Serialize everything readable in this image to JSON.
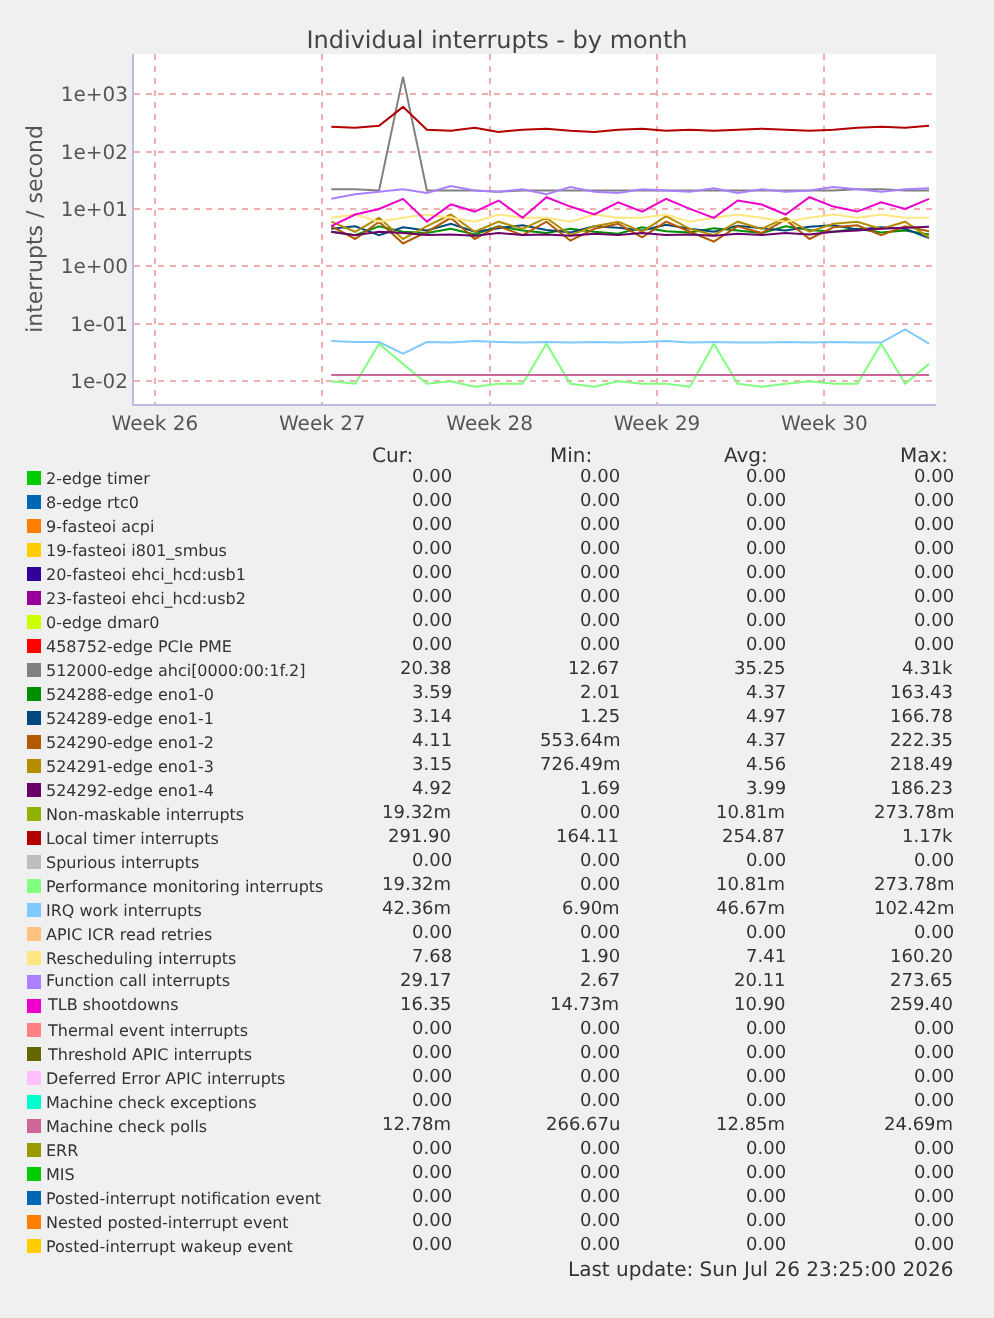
{
  "chart_data": {
    "type": "line",
    "title": "Individual interrupts - by month",
    "ylabel": "interrupts / second",
    "log": "y",
    "grid": true,
    "legend": "bottom",
    "marker": "none",
    "line_style": "solid",
    "x": [
      "2026-07-01T20:00",
      "2026-07-02T20:00",
      "2026-07-03T20:00",
      "2026-07-04T20:00",
      "2026-07-05T20:00",
      "2026-07-06T20:00",
      "2026-07-07T20:00",
      "2026-07-08T20:00",
      "2026-07-09T20:00",
      "2026-07-10T20:00",
      "2026-07-11T20:00",
      "2026-07-12T20:00",
      "2026-07-13T20:00",
      "2026-07-14T20:00",
      "2026-07-15T20:00",
      "2026-07-16T20:00",
      "2026-07-17T20:00",
      "2026-07-18T20:00",
      "2026-07-19T20:00",
      "2026-07-20T20:00",
      "2026-07-21T20:00",
      "2026-07-22T20:00",
      "2026-07-23T20:00",
      "2026-07-24T20:00",
      "2026-07-25T20:00",
      "2026-07-26T20:00"
    ],
    "xlim": [
      "2026-06-23T14:00",
      "2026-07-27T03:00"
    ],
    "xticks": [
      {
        "value": "2026-06-24T11:00",
        "label": "Week 26"
      },
      {
        "value": "2026-07-01T11:00",
        "label": "Week 27"
      },
      {
        "value": "2026-07-08T11:00",
        "label": "Week 28"
      },
      {
        "value": "2026-07-15T11:00",
        "label": "Week 29"
      },
      {
        "value": "2026-07-22T11:00",
        "label": "Week 30"
      }
    ],
    "ylim": [
      0.004,
      5000
    ],
    "yticks": [
      {
        "value": 0.01,
        "label": "1e-02"
      },
      {
        "value": 0.1,
        "label": "1e-01"
      },
      {
        "value": 1,
        "label": "1e+00"
      },
      {
        "value": 10,
        "label": "1e+01"
      },
      {
        "value": 100,
        "label": "1e+02"
      },
      {
        "value": 1000,
        "label": "1e+03"
      }
    ],
    "series": [
      {
        "name": "2-edge timer",
        "color": "#00cc00",
        "values": [
          null,
          null,
          null,
          null,
          null,
          null,
          null,
          null,
          null,
          null,
          null,
          null,
          null,
          null,
          null,
          null,
          null,
          null,
          null,
          null,
          null,
          null,
          null,
          null,
          null,
          null
        ]
      },
      {
        "name": "8-edge rtc0",
        "color": "#0066b3",
        "values": [
          null,
          null,
          null,
          null,
          null,
          null,
          null,
          null,
          null,
          null,
          null,
          null,
          null,
          null,
          null,
          null,
          null,
          null,
          null,
          null,
          null,
          null,
          null,
          null,
          null,
          null
        ]
      },
      {
        "name": "9-fasteoi acpi",
        "color": "#ff8000",
        "values": [
          null,
          null,
          null,
          null,
          null,
          null,
          null,
          null,
          null,
          null,
          null,
          null,
          null,
          null,
          null,
          null,
          null,
          null,
          null,
          null,
          null,
          null,
          null,
          null,
          null,
          null
        ]
      },
      {
        "name": "19-fasteoi i801_smbus",
        "color": "#ffcc00",
        "values": [
          null,
          null,
          null,
          null,
          null,
          null,
          null,
          null,
          null,
          null,
          null,
          null,
          null,
          null,
          null,
          null,
          null,
          null,
          null,
          null,
          null,
          null,
          null,
          null,
          null,
          null
        ]
      },
      {
        "name": "20-fasteoi ehci_hcd:usb1",
        "color": "#330099",
        "values": [
          null,
          null,
          null,
          null,
          null,
          null,
          null,
          null,
          null,
          null,
          null,
          null,
          null,
          null,
          null,
          null,
          null,
          null,
          null,
          null,
          null,
          null,
          null,
          null,
          null,
          null
        ]
      },
      {
        "name": "23-fasteoi ehci_hcd:usb2",
        "color": "#990099",
        "values": [
          null,
          null,
          null,
          null,
          null,
          null,
          null,
          null,
          null,
          null,
          null,
          null,
          null,
          null,
          null,
          null,
          null,
          null,
          null,
          null,
          null,
          null,
          null,
          null,
          null,
          null
        ]
      },
      {
        "name": "0-edge dmar0",
        "color": "#ccff00",
        "values": [
          null,
          null,
          null,
          null,
          null,
          null,
          null,
          null,
          null,
          null,
          null,
          null,
          null,
          null,
          null,
          null,
          null,
          null,
          null,
          null,
          null,
          null,
          null,
          null,
          null,
          null
        ]
      },
      {
        "name": "458752-edge PCIe PME",
        "color": "#ff0000",
        "values": [
          null,
          null,
          null,
          null,
          null,
          null,
          null,
          null,
          null,
          null,
          null,
          null,
          null,
          null,
          null,
          null,
          null,
          null,
          null,
          null,
          null,
          null,
          null,
          null,
          null,
          null
        ]
      },
      {
        "name": "512000-edge ahci[0000:00:1f.2]",
        "color": "#808080",
        "values": [
          22,
          22,
          21,
          2000,
          21,
          21,
          21,
          20,
          21,
          21,
          21,
          21,
          21,
          21,
          21,
          21,
          21,
          21,
          21,
          21,
          21,
          21,
          22,
          22,
          21,
          21
        ]
      },
      {
        "name": "524288-edge eno1-0",
        "color": "#008f00",
        "values": [
          4,
          3.5,
          5,
          4,
          3.8,
          4.5,
          3.6,
          5,
          4.2,
          3.8,
          4.5,
          4,
          3.7,
          4.8,
          4.1,
          3.9,
          4.6,
          4.2,
          3.8,
          5,
          4.3,
          4,
          4.5,
          3.9,
          4.2,
          3.6
        ]
      },
      {
        "name": "524289-edge eno1-1",
        "color": "#00487d",
        "values": [
          4.5,
          5,
          3.5,
          4.8,
          4.2,
          5.5,
          4,
          4.6,
          5.2,
          4.3,
          3.9,
          5,
          4.7,
          4.2,
          5.3,
          4.5,
          4,
          5.1,
          4.6,
          4.2,
          4.9,
          5.2,
          4.4,
          4.8,
          4.5,
          3.1
        ]
      },
      {
        "name": "524290-edge eno1-2",
        "color": "#b35a00",
        "values": [
          5,
          3,
          6,
          2.5,
          4,
          7,
          3,
          5,
          3.5,
          6,
          2.8,
          4.5,
          5.5,
          3.2,
          6,
          4,
          2.7,
          5,
          3.8,
          6.5,
          3,
          4.8,
          5.2,
          3.5,
          5,
          4.1
        ]
      },
      {
        "name": "524291-edge eno1-3",
        "color": "#b38f00",
        "values": [
          6,
          4,
          7,
          3,
          5,
          8,
          4,
          6,
          4.5,
          7,
          3.5,
          5,
          6,
          4,
          7.5,
          4.5,
          3.5,
          6,
          4.5,
          7,
          4,
          5.5,
          6,
          4.5,
          6,
          3.2
        ]
      },
      {
        "name": "524292-edge eno1-4",
        "color": "#6b006b",
        "values": [
          4,
          3.5,
          4,
          3.8,
          3.5,
          3.6,
          3.4,
          3.8,
          3.5,
          3.6,
          3.4,
          3.7,
          3.5,
          3.8,
          3.5,
          3.6,
          3.4,
          3.7,
          3.5,
          3.8,
          3.6,
          4,
          4.2,
          4.5,
          4.7,
          4.9
        ]
      },
      {
        "name": "Non-maskable interrupts",
        "color": "#8fb300",
        "values": [
          null,
          null,
          null,
          null,
          null,
          null,
          null,
          null,
          null,
          null,
          null,
          null,
          null,
          null,
          null,
          null,
          null,
          null,
          null,
          null,
          null,
          null,
          null,
          null,
          null,
          null
        ]
      },
      {
        "name": "Local timer interrupts",
        "color": "#b30000",
        "values": [
          270,
          260,
          280,
          600,
          240,
          230,
          260,
          220,
          240,
          250,
          230,
          220,
          240,
          250,
          230,
          240,
          230,
          240,
          250,
          240,
          230,
          240,
          260,
          270,
          260,
          280
        ]
      },
      {
        "name": "Spurious interrupts",
        "color": "#bebebe",
        "values": [
          null,
          null,
          null,
          null,
          null,
          null,
          null,
          null,
          null,
          null,
          null,
          null,
          null,
          null,
          null,
          null,
          null,
          null,
          null,
          null,
          null,
          null,
          null,
          null,
          null,
          null
        ]
      },
      {
        "name": "Performance monitoring interrupts",
        "color": "#80ff80",
        "values": [
          0.01,
          0.009,
          0.045,
          0.02,
          0.009,
          0.01,
          0.008,
          0.009,
          0.009,
          0.045,
          0.009,
          0.008,
          0.01,
          0.009,
          0.009,
          0.008,
          0.045,
          0.009,
          0.008,
          0.009,
          0.01,
          0.009,
          0.009,
          0.045,
          0.009,
          0.02
        ]
      },
      {
        "name": "IRQ work interrupts",
        "color": "#80c9ff",
        "values": [
          0.05,
          0.048,
          0.048,
          0.03,
          0.048,
          0.047,
          0.05,
          0.048,
          0.047,
          0.048,
          0.047,
          0.048,
          0.047,
          0.048,
          0.05,
          0.047,
          0.048,
          0.047,
          0.047,
          0.048,
          0.047,
          0.048,
          0.047,
          0.047,
          0.08,
          0.045
        ]
      },
      {
        "name": "APIC ICR read retries",
        "color": "#ffc080",
        "values": [
          null,
          null,
          null,
          null,
          null,
          null,
          null,
          null,
          null,
          null,
          null,
          null,
          null,
          null,
          null,
          null,
          null,
          null,
          null,
          null,
          null,
          null,
          null,
          null,
          null,
          null
        ]
      },
      {
        "name": "Rescheduling interrupts",
        "color": "#ffe680",
        "values": [
          7,
          8,
          6,
          7,
          8,
          7,
          6,
          8,
          7,
          7,
          6,
          8,
          7,
          7,
          8,
          6,
          7,
          8,
          7,
          6,
          7,
          8,
          7,
          8,
          7,
          7
        ]
      },
      {
        "name": "Function call interrupts",
        "color": "#aa80ff",
        "values": [
          15,
          18,
          20,
          22,
          19,
          25,
          21,
          20,
          22,
          18,
          24,
          20,
          19,
          22,
          21,
          20,
          23,
          19,
          22,
          20,
          21,
          24,
          22,
          20,
          22,
          23
        ]
      },
      {
        "name": "TLB shootdowns",
        "color": "#ee00cc",
        "values": [
          5,
          8,
          10,
          15,
          6,
          12,
          9,
          14,
          7,
          16,
          11,
          8,
          13,
          9,
          15,
          10,
          7,
          14,
          12,
          8,
          16,
          11,
          9,
          13,
          10,
          15
        ]
      },
      {
        "name": "Thermal event interrupts",
        "color": "#ff8080",
        "values": [
          null,
          null,
          null,
          null,
          null,
          null,
          null,
          null,
          null,
          null,
          null,
          null,
          null,
          null,
          null,
          null,
          null,
          null,
          null,
          null,
          null,
          null,
          null,
          null,
          null,
          null
        ]
      },
      {
        "name": "Threshold APIC interrupts",
        "color": "#666600",
        "values": [
          null,
          null,
          null,
          null,
          null,
          null,
          null,
          null,
          null,
          null,
          null,
          null,
          null,
          null,
          null,
          null,
          null,
          null,
          null,
          null,
          null,
          null,
          null,
          null,
          null,
          null
        ]
      },
      {
        "name": "Deferred Error APIC interrupts",
        "color": "#ffbfff",
        "values": [
          null,
          null,
          null,
          null,
          null,
          null,
          null,
          null,
          null,
          null,
          null,
          null,
          null,
          null,
          null,
          null,
          null,
          null,
          null,
          null,
          null,
          null,
          null,
          null,
          null,
          null
        ]
      },
      {
        "name": "Machine check exceptions",
        "color": "#00ffcc",
        "values": [
          null,
          null,
          null,
          null,
          null,
          null,
          null,
          null,
          null,
          null,
          null,
          null,
          null,
          null,
          null,
          null,
          null,
          null,
          null,
          null,
          null,
          null,
          null,
          null,
          null,
          null
        ]
      },
      {
        "name": "Machine check polls",
        "color": "#cc6699",
        "x": [
          "2026-07-01T20:00",
          "2026-07-26T20:00"
        ],
        "values": [
          0.0128,
          0.0128
        ]
      },
      {
        "name": "ERR",
        "color": "#999900",
        "values": [
          null,
          null,
          null,
          null,
          null,
          null,
          null,
          null,
          null,
          null,
          null,
          null,
          null,
          null,
          null,
          null,
          null,
          null,
          null,
          null,
          null,
          null,
          null,
          null,
          null,
          null
        ]
      },
      {
        "name": "MIS",
        "color": "#00cc00",
        "values": [
          null,
          null,
          null,
          null,
          null,
          null,
          null,
          null,
          null,
          null,
          null,
          null,
          null,
          null,
          null,
          null,
          null,
          null,
          null,
          null,
          null,
          null,
          null,
          null,
          null,
          null
        ]
      },
      {
        "name": "Posted-interrupt notification event",
        "color": "#0066b3",
        "values": [
          null,
          null,
          null,
          null,
          null,
          null,
          null,
          null,
          null,
          null,
          null,
          null,
          null,
          null,
          null,
          null,
          null,
          null,
          null,
          null,
          null,
          null,
          null,
          null,
          null,
          null
        ]
      },
      {
        "name": "Nested posted-interrupt event",
        "color": "#ff8000",
        "values": [
          null,
          null,
          null,
          null,
          null,
          null,
          null,
          null,
          null,
          null,
          null,
          null,
          null,
          null,
          null,
          null,
          null,
          null,
          null,
          null,
          null,
          null,
          null,
          null,
          null,
          null
        ]
      },
      {
        "name": "Posted-interrupt wakeup event",
        "color": "#ffcc00",
        "values": [
          null,
          null,
          null,
          null,
          null,
          null,
          null,
          null,
          null,
          null,
          null,
          null,
          null,
          null,
          null,
          null,
          null,
          null,
          null,
          null,
          null,
          null,
          null,
          null,
          null,
          null
        ]
      }
    ],
    "annotations": [
      "Cur:",
      "Min:",
      "Avg:",
      "Max:",
      "0.00",
      "0.00",
      "0.00",
      "0.00",
      "0.00",
      "0.00",
      "0.00",
      "0.00",
      "0.00",
      "0.00",
      "0.00",
      "0.00",
      "0.00",
      "0.00",
      "0.00",
      "0.00",
      "0.00",
      "0.00",
      "0.00",
      "0.00",
      "0.00",
      "0.00",
      "0.00",
      "0.00",
      "0.00",
      "0.00",
      "0.00",
      "0.00",
      "0.00",
      "0.00",
      "0.00",
      "0.00",
      "20.38",
      "12.67",
      "35.25",
      "4.31k",
      "3.59",
      "2.01",
      "4.37",
      "163.43",
      "3.14",
      "1.25",
      "4.97",
      "166.78",
      "4.11",
      "553.64m",
      "4.37",
      "222.35",
      "3.15",
      "726.49m",
      "4.56",
      "218.49",
      "4.92",
      "1.69",
      "3.99",
      "186.23",
      "19.32m",
      "0.00",
      "10.81m",
      "273.78m",
      "291.90",
      "164.11",
      "254.87",
      "1.17k",
      "0.00",
      "0.00",
      "0.00",
      "0.00",
      "19.32m",
      "0.00",
      "10.81m",
      "273.78m",
      "42.36m",
      "6.90m",
      "46.67m",
      "102.42m",
      "0.00",
      "0.00",
      "0.00",
      "0.00",
      "7.68",
      "1.90",
      "7.41",
      "160.20",
      "29.17",
      "2.67",
      "20.11",
      "273.65",
      "16.35",
      "14.73m",
      "10.90",
      "259.40",
      "0.00",
      "0.00",
      "0.00",
      "0.00",
      "0.00",
      "0.00",
      "0.00",
      "0.00",
      "0.00",
      "0.00",
      "0.00",
      "0.00",
      "0.00",
      "0.00",
      "0.00",
      "0.00",
      "12.78m",
      "266.67u",
      "12.85m",
      "24.69m",
      "0.00",
      "0.00",
      "0.00",
      "0.00",
      "0.00",
      "0.00",
      "0.00",
      "0.00",
      "0.00",
      "0.00",
      "0.00",
      "0.00",
      "0.00",
      "0.00",
      "0.00",
      "0.00",
      "0.00",
      "0.00",
      "0.00",
      "0.00",
      "Last update: Sun Jul 26 23:25:00 2026"
    ]
  }
}
